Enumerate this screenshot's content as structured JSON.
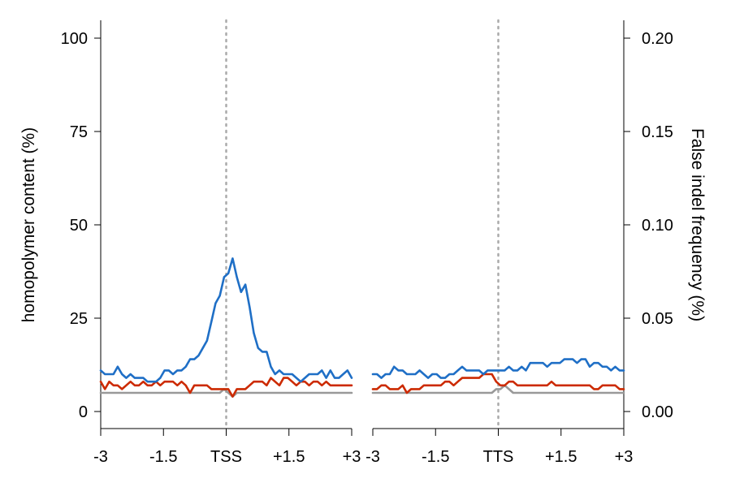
{
  "chart_data": {
    "type": "line",
    "title": "",
    "ylabel": "homopolymer content (%)",
    "ylabel_right": "False indel frequency (%)",
    "ylim": [
      0,
      100
    ],
    "ylim_right": [
      0,
      0.2
    ],
    "yticks": [
      "0",
      "25",
      "50",
      "75",
      "100"
    ],
    "yticks_right": [
      "0.00",
      "0.05",
      "0.10",
      "0.15",
      "0.20"
    ],
    "grid": false,
    "legend": "none",
    "panels": [
      {
        "xlim": [
          -3,
          3
        ],
        "xticks": [
          {
            "x": -3,
            "label": "-3"
          },
          {
            "x": -1.5,
            "label": "-1.5"
          },
          {
            "x": 0,
            "label": "TSS"
          },
          {
            "x": 1.5,
            "label": "+1.5"
          },
          {
            "x": 3,
            "label": "+3"
          }
        ],
        "reference_line_x": 0,
        "series": [
          {
            "color": "#1f6fc6",
            "axis": "left",
            "values": [
              11,
              10,
              10,
              10,
              12,
              10,
              9,
              10,
              9,
              9,
              9,
              8,
              8,
              8,
              9,
              11,
              11,
              10,
              11,
              11,
              12,
              14,
              14,
              15,
              17,
              19,
              24,
              29,
              31,
              36,
              37,
              41,
              36,
              32,
              34,
              28,
              21,
              17,
              16,
              16,
              12,
              10,
              11,
              10,
              10,
              10,
              9,
              8,
              9,
              10,
              10,
              10,
              11,
              9,
              11,
              9,
              9,
              10,
              11,
              9
            ]
          },
          {
            "color": "#cc2a00",
            "axis": "left",
            "values": [
              8,
              6,
              8,
              7,
              7,
              6,
              7,
              8,
              7,
              7,
              8,
              7,
              7,
              8,
              7,
              8,
              8,
              8,
              7,
              8,
              7,
              5,
              7,
              7,
              7,
              7,
              6,
              6,
              6,
              6,
              6,
              4,
              6,
              6,
              6,
              7,
              8,
              8,
              8,
              7,
              9,
              8,
              7,
              9,
              9,
              8,
              7,
              8,
              8,
              7,
              8,
              8,
              7,
              8,
              7,
              7,
              7,
              7,
              7,
              7
            ]
          },
          {
            "color": "#999999",
            "axis": "left",
            "values": [
              5,
              5,
              5,
              5,
              5,
              5,
              5,
              5,
              5,
              5,
              5,
              5,
              5,
              5,
              5,
              5,
              5,
              5,
              5,
              5,
              5,
              5,
              5,
              5,
              5,
              5,
              5,
              5,
              5,
              6,
              5,
              4,
              5,
              5,
              5,
              5,
              5,
              5,
              5,
              5,
              5,
              5,
              5,
              5,
              5,
              5,
              5,
              5,
              5,
              5,
              5,
              5,
              5,
              5,
              5,
              5,
              5,
              5,
              5,
              5
            ]
          }
        ]
      },
      {
        "xlim": [
          -3,
          3
        ],
        "xticks": [
          {
            "x": -3,
            "label": "-3"
          },
          {
            "x": -1.5,
            "label": "-1.5"
          },
          {
            "x": 0,
            "label": "TTS"
          },
          {
            "x": 1.5,
            "label": "+1.5"
          },
          {
            "x": 3,
            "label": "+3"
          }
        ],
        "reference_line_x": 0,
        "series": [
          {
            "color": "#1f6fc6",
            "axis": "left",
            "values": [
              10,
              10,
              9,
              10,
              10,
              12,
              11,
              11,
              10,
              10,
              10,
              11,
              10,
              9,
              10,
              10,
              9,
              9,
              10,
              10,
              11,
              12,
              11,
              11,
              11,
              11,
              10,
              11,
              11,
              11,
              11,
              11,
              12,
              11,
              11,
              12,
              11,
              13,
              13,
              13,
              13,
              12,
              13,
              13,
              13,
              14,
              14,
              14,
              13,
              14,
              14,
              12,
              13,
              13,
              12,
              12,
              11,
              12,
              11,
              11
            ]
          },
          {
            "color": "#cc2a00",
            "axis": "left",
            "values": [
              6,
              6,
              7,
              7,
              6,
              6,
              6,
              7,
              5,
              6,
              6,
              6,
              7,
              7,
              7,
              7,
              7,
              8,
              8,
              7,
              8,
              9,
              9,
              9,
              9,
              9,
              10,
              10,
              10,
              8,
              7,
              7,
              8,
              8,
              7,
              7,
              7,
              7,
              7,
              7,
              7,
              7,
              8,
              7,
              7,
              7,
              7,
              7,
              7,
              7,
              7,
              7,
              6,
              6,
              7,
              7,
              7,
              7,
              6,
              6
            ]
          },
          {
            "color": "#999999",
            "axis": "left",
            "values": [
              5,
              5,
              5,
              5,
              5,
              5,
              5,
              5,
              5,
              5,
              5,
              5,
              5,
              5,
              5,
              5,
              5,
              5,
              5,
              5,
              5,
              5,
              5,
              5,
              5,
              5,
              5,
              5,
              5,
              6,
              6,
              7,
              6,
              5,
              5,
              5,
              5,
              5,
              5,
              5,
              5,
              5,
              5,
              5,
              5,
              5,
              5,
              5,
              5,
              5,
              5,
              5,
              5,
              5,
              5,
              5,
              5,
              5,
              5,
              5
            ]
          }
        ]
      }
    ]
  }
}
